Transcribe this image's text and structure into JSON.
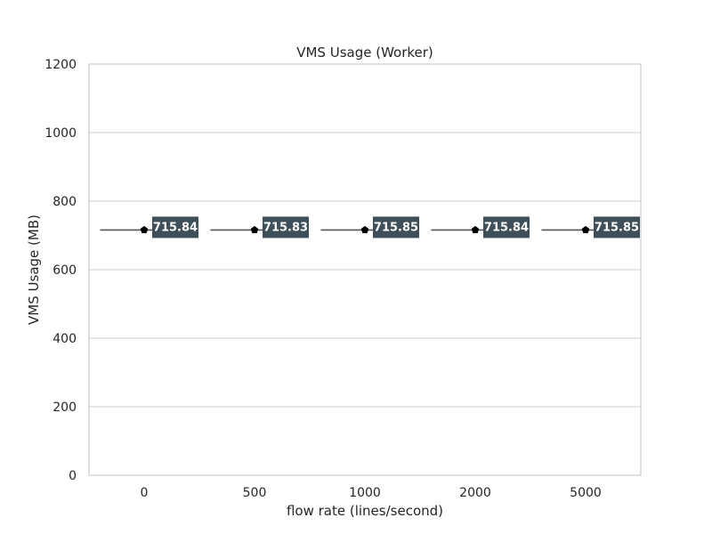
{
  "chart_data": {
    "type": "box",
    "title": "VMS Usage (Worker)",
    "xlabel": "flow rate (lines/second)",
    "ylabel": "VMS Usage (MB)",
    "categories": [
      "0",
      "500",
      "1000",
      "2000",
      "5000"
    ],
    "values": [
      715.84,
      715.83,
      715.85,
      715.84,
      715.85
    ],
    "value_labels": [
      "715.84",
      "715.83",
      "715.85",
      "715.84",
      "715.85"
    ],
    "ylim": [
      0,
      1200
    ],
    "yticks": [
      "0",
      "200",
      "400",
      "600",
      "800",
      "1000",
      "1200"
    ],
    "grid": true,
    "legend": "none",
    "colors": {
      "grid": "#cccccc",
      "frame": "#cccccc",
      "median_line": "#555555",
      "mean_marker": "#000000",
      "label_box": "#3f4f5a",
      "label_text": "#ffffff"
    }
  }
}
